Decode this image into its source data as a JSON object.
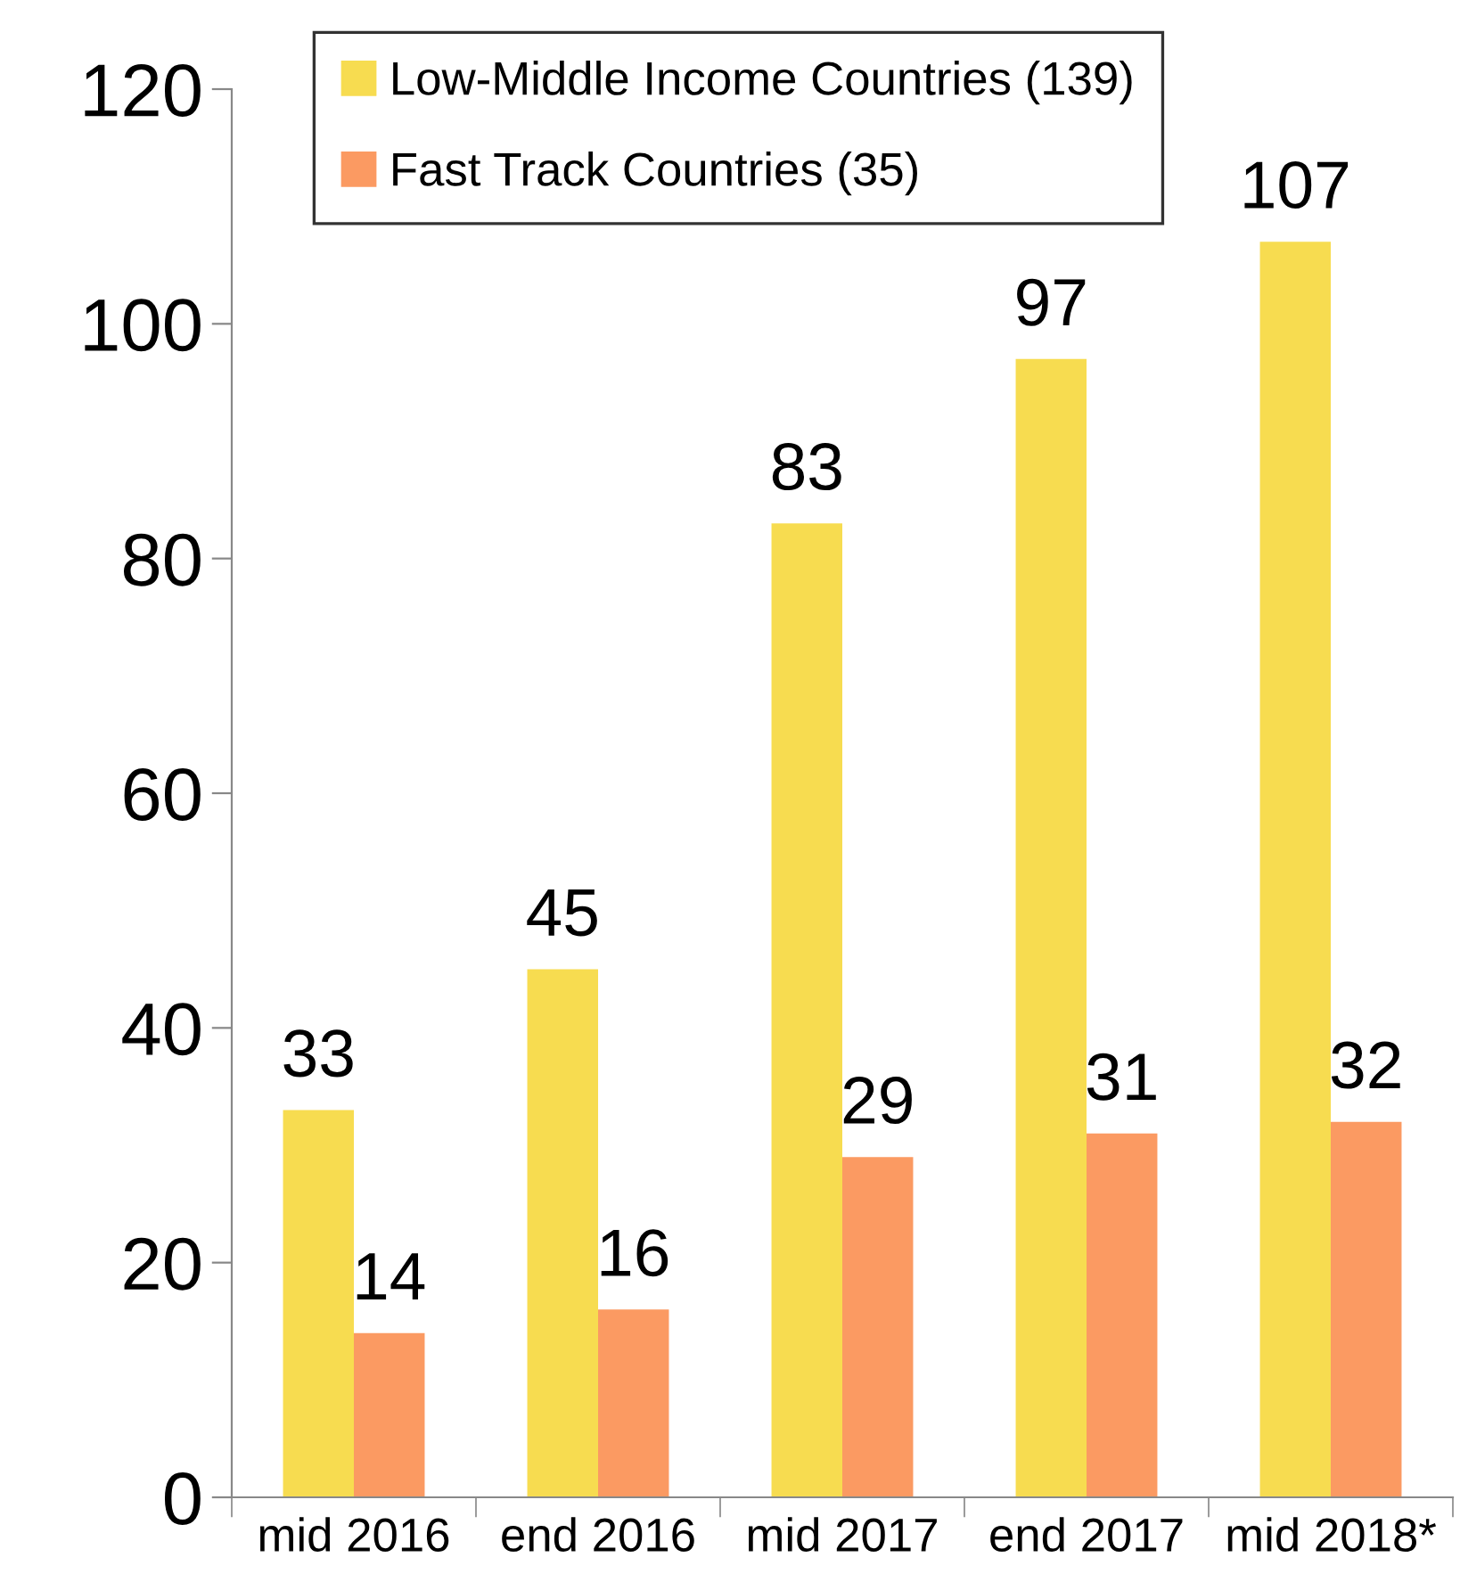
{
  "chart_data": {
    "type": "bar",
    "categories": [
      "mid 2016",
      "end 2016",
      "mid 2017",
      "end 2017",
      "mid 2018*"
    ],
    "series": [
      {
        "name": "Low-Middle Income Countries (139)",
        "color": "#f7dc50",
        "values": [
          33,
          45,
          83,
          97,
          107
        ]
      },
      {
        "name": "Fast Track Countries (35)",
        "color": "#fb9a62",
        "values": [
          14,
          16,
          29,
          31,
          32
        ]
      }
    ],
    "ylim": [
      0,
      120
    ],
    "yticks": [
      0,
      20,
      40,
      60,
      80,
      100,
      120
    ],
    "data_labels": true,
    "grid": false,
    "legend": "top left"
  }
}
